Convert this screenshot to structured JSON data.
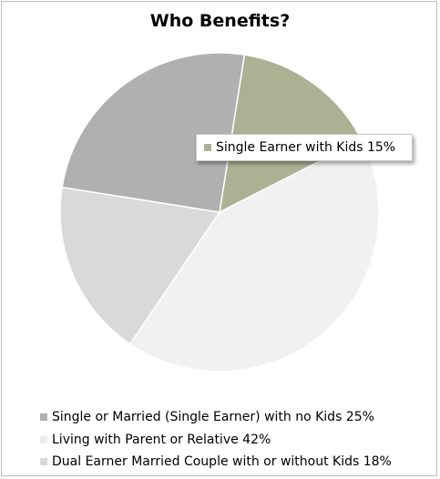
{
  "chart_data": {
    "type": "pie",
    "title": "Who Benefits?",
    "slices": [
      {
        "name": "Single Earner with Kids",
        "value": 15,
        "label": "Single Earner with Kids 15%",
        "color": "#abb192"
      },
      {
        "name": "Living with Parent or Relative",
        "value": 42,
        "label": "Living with Parent or Relative 42%",
        "color": "#f1f1f1"
      },
      {
        "name": "Dual Earner Married Couple with or without Kids",
        "value": 18,
        "label": "Dual Earner Married Couple with or without Kids 18%",
        "color": "#d9d9d9"
      },
      {
        "name": "Single or Married (Single Earner) with no Kids",
        "value": 25,
        "label": "Single or Married (Single Earner) with no Kids 25%",
        "color": "#b0b0b0"
      }
    ],
    "legend_position": "bottom",
    "legend_order": [
      3,
      1,
      2
    ],
    "callout_slice": 0
  }
}
